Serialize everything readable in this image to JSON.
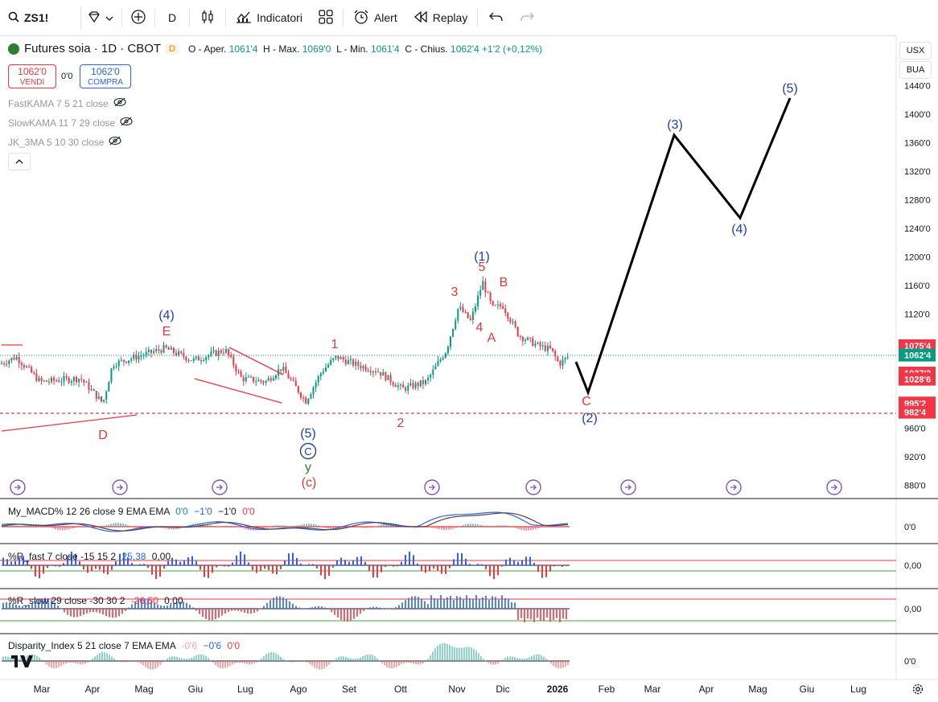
{
  "toolbar": {
    "symbol": "ZS1!",
    "interval": "D",
    "indicators_label": "Indicatori",
    "alert_label": "Alert",
    "replay_label": "Replay"
  },
  "legend": {
    "title": "Futures soia · 1D · CBOT",
    "badge": "D",
    "o_label": "O - Aper.",
    "o": "1061'4",
    "h_label": "H - Max.",
    "h": "1069'0",
    "l_label": "L - Min.",
    "l": "1061'4",
    "c_label": "C - Chius.",
    "c": "1062'4",
    "change": "+1'2 (+0,12%)"
  },
  "trade": {
    "sell_price": "1062'0",
    "sell_label": "VENDI",
    "spread": "0'0",
    "buy_price": "1062'0",
    "buy_label": "COMPRA"
  },
  "overlays": [
    {
      "label": "FastKAMA 7 5 21 close"
    },
    {
      "label": "SlowKAMA 11 7 29 close"
    },
    {
      "label": "JK_3MA 5 10 30 close"
    }
  ],
  "price_axis": {
    "currency": "USX",
    "unit": "BUA",
    "ticks": [
      "1440'0",
      "1400'0",
      "1360'0",
      "1320'0",
      "1280'0",
      "1240'0",
      "1200'0",
      "1160'0",
      "1120'0",
      "1075'4",
      "1062'4",
      "1037'2",
      "1028'6",
      "995'2",
      "982'4",
      "960'0",
      "920'0",
      "880'0"
    ],
    "tick_values": [
      1440,
      1400,
      1360,
      1320,
      1280,
      1240,
      1200,
      1160,
      1120,
      1075.5,
      1062.5,
      1037.25,
      1028.75,
      995.25,
      982.5,
      960,
      920,
      880
    ],
    "badge_colors": {
      "1075'4": "#f23645",
      "1062'4": "#089981",
      "1037'2": "#f23645",
      "1028'6": "#f23645",
      "995'2": "#f23645",
      "982'4": "#f23645"
    }
  },
  "time_axis": [
    "Mar",
    "Apr",
    "Mag",
    "Giu",
    "Lug",
    "Ago",
    "Set",
    "Ott",
    "Nov",
    "Dic",
    "2026",
    "Feb",
    "Mar",
    "Apr",
    "Mag",
    "Giu",
    "Lug"
  ],
  "wave_labels": [
    {
      "text": "(4)",
      "color": "#1e40af"
    },
    {
      "text": "E",
      "color": "#e53935"
    },
    {
      "text": "D",
      "color": "#e53935"
    },
    {
      "text": "1",
      "color": "#e53935"
    },
    {
      "text": "2",
      "color": "#e53935"
    },
    {
      "text": "(5)",
      "color": "#1e40af"
    },
    {
      "text": "C",
      "color": "#1e40af"
    },
    {
      "text": "y",
      "color": "#2e7d32"
    },
    {
      "text": "(c)",
      "color": "#e53935"
    },
    {
      "text": "(1)",
      "color": "#1e40af"
    },
    {
      "text": "5",
      "color": "#e53935"
    },
    {
      "text": "3",
      "color": "#e53935"
    },
    {
      "text": "4",
      "color": "#e53935"
    },
    {
      "text": "B",
      "color": "#e53935"
    },
    {
      "text": "A",
      "color": "#e53935"
    },
    {
      "text": "C",
      "color": "#e53935"
    },
    {
      "text": "(2)",
      "color": "#1e40af"
    },
    {
      "text": "(3)",
      "color": "#1e40af"
    },
    {
      "text": "(4)",
      "color": "#1e40af"
    },
    {
      "text": "(5)",
      "color": "#1e40af"
    }
  ],
  "panes": [
    {
      "label": "My_MACD% 12 26 close 9 EMA EMA",
      "vals": [
        "0'0",
        "−1'0",
        "−1'0",
        "0'0"
      ],
      "val_colors": [
        "#089981",
        "#2962ff",
        "#131722",
        "#f23645"
      ],
      "axis": "0'0"
    },
    {
      "label": "%R_fast 7 close -15 15 2",
      "vals": [
        "25,38",
        "0,00"
      ],
      "val_colors": [
        "#2962ff",
        "#131722"
      ],
      "axis": "0,00"
    },
    {
      "label": "%R_slow 29 close -30 30 2",
      "vals": [
        "-26,50",
        "0,00"
      ],
      "val_colors": [
        "#f23645",
        "#131722"
      ],
      "axis": "0,00"
    },
    {
      "label": "Disparity_Index 5 21 close 7 EMA EMA",
      "vals": [
        "-0'6",
        "−0'6",
        "0'0"
      ],
      "val_colors": [
        "#f7a6a6",
        "#2962ff",
        "#f23645"
      ],
      "axis": "0'0"
    }
  ],
  "colors": {
    "up": "#089981",
    "down": "#f23645",
    "projection": "#000000",
    "blue": "#1e40af",
    "red": "#e53935"
  }
}
